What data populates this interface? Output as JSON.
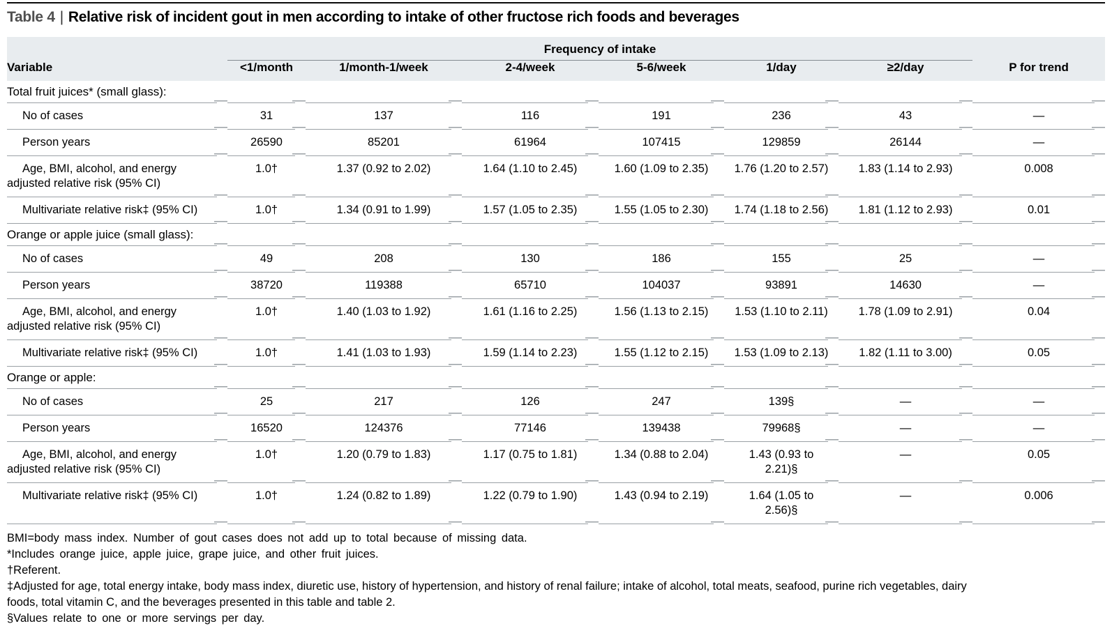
{
  "title": {
    "label": "Table 4",
    "separator": "|",
    "text": "Relative risk of incident gout in men according to intake of other fructose rich foods and beverages"
  },
  "table": {
    "group_header": "Frequency of intake",
    "columns": [
      "Variable",
      "<1/month",
      "1/month-1/week",
      "2-4/week",
      "5-6/week",
      "1/day",
      "≥2/day",
      "P for trend"
    ],
    "sections": [
      {
        "label": "Total fruit juices* (small glass):",
        "rows": [
          {
            "label": "No of cases",
            "values": [
              "31",
              "137",
              "116",
              "191",
              "236",
              "43",
              "—"
            ]
          },
          {
            "label": "Person years",
            "values": [
              "26590",
              "85201",
              "61964",
              "107415",
              "129859",
              "26144",
              "—"
            ]
          },
          {
            "label": "Age, BMI, alcohol, and energy\nadjusted relative risk (95% CI)",
            "values": [
              "1.0†",
              "1.37 (0.92 to 2.02)",
              "1.64 (1.10 to 2.45)",
              "1.60 (1.09 to 2.35)",
              "1.76 (1.20 to 2.57)",
              "1.83 (1.14 to 2.93)",
              "0.008"
            ]
          },
          {
            "label": "Multivariate relative risk‡ (95% CI)",
            "values": [
              "1.0†",
              "1.34 (0.91 to 1.99)",
              "1.57 (1.05 to 2.35)",
              "1.55 (1.05 to 2.30)",
              "1.74 (1.18 to 2.56)",
              "1.81 (1.12 to 2.93)",
              "0.01"
            ]
          }
        ]
      },
      {
        "label": "Orange or apple juice (small glass):",
        "rows": [
          {
            "label": "No of cases",
            "values": [
              "49",
              "208",
              "130",
              "186",
              "155",
              "25",
              "—"
            ]
          },
          {
            "label": "Person years",
            "values": [
              "38720",
              "119388",
              "65710",
              "104037",
              "93891",
              "14630",
              "—"
            ]
          },
          {
            "label": "Age, BMI, alcohol, and energy\nadjusted relative risk (95% CI)",
            "values": [
              "1.0†",
              "1.40 (1.03 to 1.92)",
              "1.61 (1.16 to 2.25)",
              "1.56 (1.13 to 2.15)",
              "1.53 (1.10 to 2.11)",
              "1.78 (1.09 to 2.91)",
              "0.04"
            ]
          },
          {
            "label": "Multivariate relative risk‡ (95% CI)",
            "values": [
              "1.0†",
              "1.41 (1.03 to 1.93)",
              "1.59 (1.14 to 2.23)",
              "1.55 (1.12 to 2.15)",
              "1.53 (1.09 to 2.13)",
              "1.82 (1.11 to 3.00)",
              "0.05"
            ]
          }
        ]
      },
      {
        "label": "Orange or apple:",
        "rows": [
          {
            "label": "No of cases",
            "values": [
              "25",
              "217",
              "126",
              "247",
              "139§",
              "—",
              "—"
            ]
          },
          {
            "label": "Person years",
            "values": [
              "16520",
              "124376",
              "77146",
              "139438",
              "79968§",
              "—",
              "—"
            ]
          },
          {
            "label": "Age, BMI, alcohol, and energy\nadjusted relative risk (95% CI)",
            "values": [
              "1.0†",
              "1.20 (0.79 to 1.83)",
              "1.17 (0.75 to 1.81)",
              "1.34 (0.88 to 2.04)",
              "1.43 (0.93 to\n2.21)§",
              "—",
              "0.05"
            ]
          },
          {
            "label": "Multivariate relative risk‡ (95% CI)",
            "values": [
              "1.0†",
              "1.24 (0.82 to 1.89)",
              "1.22 (0.79 to 1.90)",
              "1.43 (0.94 to 2.19)",
              "1.64 (1.05 to\n2.56)§",
              "—",
              "0.006"
            ]
          }
        ]
      }
    ]
  },
  "footnotes": [
    "BMI=body mass index. Number of gout cases does not add up to total because of missing data.",
    "*Includes orange juice, apple juice, grape juice, and other fruit juices.",
    "†Referent.",
    "‡Adjusted for age, total energy intake, body mass index, diuretic use, history of hypertension, and history of renal failure; intake of alcohol, total meats, seafood, purine rich vegetables, dairy\nfoods, total vitamin C, and the beverages presented in this table and table 2.",
    "§Values relate to one or more servings per day."
  ]
}
